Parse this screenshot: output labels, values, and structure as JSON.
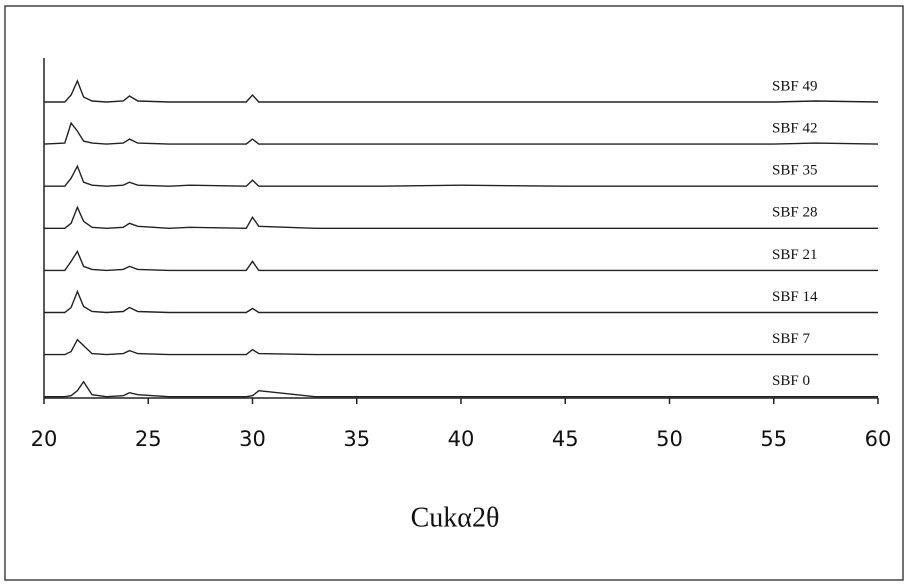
{
  "chart_data": {
    "type": "line",
    "x": [
      20,
      21,
      21.3,
      21.6,
      21.9,
      22.3,
      23,
      23.8,
      24.1,
      24.5,
      26,
      27,
      29.7,
      30,
      30.3,
      33,
      36,
      40,
      45,
      50,
      55,
      57,
      60
    ],
    "xlim": [
      20,
      60
    ],
    "xticks": [
      20,
      25,
      30,
      35,
      40,
      45,
      50,
      55,
      60
    ],
    "xlabel": "Cukα2θ",
    "series": [
      {
        "name": "SBF 49",
        "color": "#222",
        "values": [
          1,
          1,
          8,
          22,
          6,
          2,
          1,
          2,
          7,
          2,
          1,
          1,
          1,
          8,
          1,
          1,
          1,
          1,
          1,
          1,
          1,
          2,
          1
        ]
      },
      {
        "name": "SBF 42",
        "color": "#222",
        "values": [
          1,
          2,
          22,
          14,
          4,
          2,
          1,
          2,
          6,
          2,
          1,
          1,
          1,
          6,
          1,
          1,
          1,
          1,
          1,
          1,
          1,
          2,
          1
        ]
      },
      {
        "name": "SBF 35",
        "color": "#222",
        "values": [
          1,
          1,
          9,
          21,
          5,
          2,
          1,
          2,
          5,
          2,
          1,
          2,
          1,
          7,
          1,
          1,
          1,
          2,
          1,
          1,
          1,
          1,
          1
        ]
      },
      {
        "name": "SBF 28",
        "color": "#222",
        "values": [
          1,
          1,
          6,
          22,
          8,
          2,
          1,
          2,
          6,
          3,
          1,
          2,
          1,
          12,
          3,
          1,
          1,
          1,
          1,
          1,
          1,
          1,
          1
        ]
      },
      {
        "name": "SBF 21",
        "color": "#222",
        "values": [
          1,
          1,
          10,
          20,
          5,
          2,
          1,
          2,
          5,
          2,
          1,
          1,
          1,
          10,
          1,
          1,
          1,
          1,
          1,
          1,
          1,
          1,
          1
        ]
      },
      {
        "name": "SBF 14",
        "color": "#222",
        "values": [
          1,
          1,
          6,
          22,
          7,
          2,
          1,
          2,
          6,
          2,
          1,
          1,
          1,
          5,
          1,
          1,
          1,
          1,
          1,
          1,
          1,
          1,
          1
        ]
      },
      {
        "name": "SBF 7",
        "color": "#222",
        "values": [
          1,
          1,
          4,
          16,
          10,
          2,
          1,
          2,
          5,
          2,
          1,
          1,
          1,
          6,
          2,
          1,
          1,
          1,
          1,
          1,
          1,
          1,
          1
        ]
      },
      {
        "name": "SBF 0",
        "color": "#222",
        "values": [
          1,
          1,
          2,
          7,
          16,
          3,
          1,
          2,
          5,
          3,
          1,
          1,
          1,
          2,
          7,
          1,
          1,
          1,
          1,
          1,
          1,
          1,
          1
        ]
      }
    ]
  }
}
